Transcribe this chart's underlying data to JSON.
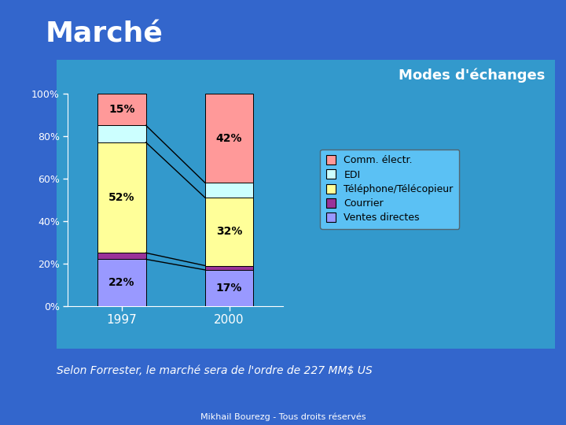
{
  "title": "Marché",
  "subtitle": "Modes d'échanges",
  "years": [
    "1997",
    "2000"
  ],
  "categories": [
    "Ventes directes",
    "Courrier",
    "Téléphone/Télécopieur",
    "EDI",
    "Comm. électr."
  ],
  "values_1997": [
    22,
    3,
    52,
    8,
    15
  ],
  "values_2000": [
    17,
    2,
    32,
    7,
    42
  ],
  "colors": [
    "#9999ff",
    "#993399",
    "#ffff99",
    "#ccffff",
    "#ff9999"
  ],
  "bg_color": "#3366cc",
  "plot_bg_color": "#3399cc",
  "legend_bg_color": "#66ccff",
  "footnote": "Selon Forrester, le marché sera de l'ordre de 227 MM$ US",
  "footer": "Mikhail Bourezg - Tous droits réservés",
  "labels_1997": [
    "22%",
    "",
    "52%",
    "",
    "15%"
  ],
  "labels_2000": [
    "17%",
    "",
    "32%",
    "",
    "42%"
  ]
}
